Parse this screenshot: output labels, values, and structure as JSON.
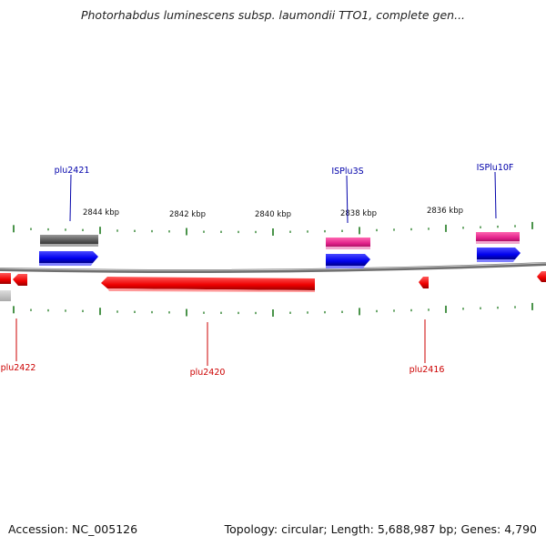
{
  "title": "Photorhabdus luminescens subsp. laumondii TTO1, complete gen...",
  "scale_labels": [
    "2844 kbp",
    "2842 kbp",
    "2840 kbp",
    "2838 kbp",
    "2836 kbp"
  ],
  "genes_forward": [
    {
      "name": "plu2421",
      "color": "#1a1aff"
    },
    {
      "name": "ISPlu3S",
      "color": "#1a1aff"
    },
    {
      "name": "ISPlu10F",
      "color": "#1a1aff"
    }
  ],
  "genes_reverse": [
    {
      "name": "plu2422",
      "color": "#e01010"
    },
    {
      "name": "plu2420",
      "color": "#e01010"
    },
    {
      "name": "plu2416",
      "color": "#e01010"
    }
  ],
  "colors": {
    "forward_strand": "#1a1aff",
    "reverse_strand": "#ff1a1a",
    "pseudo_gene": "#666666",
    "mobile_element": "#e8308a",
    "backbone": "#888888",
    "ticks": "#1e7a1e"
  },
  "footer": {
    "accession": "Accession: NC_005126",
    "summary": "Topology: circular; Length: 5,688,987 bp; Genes: 4,790"
  }
}
